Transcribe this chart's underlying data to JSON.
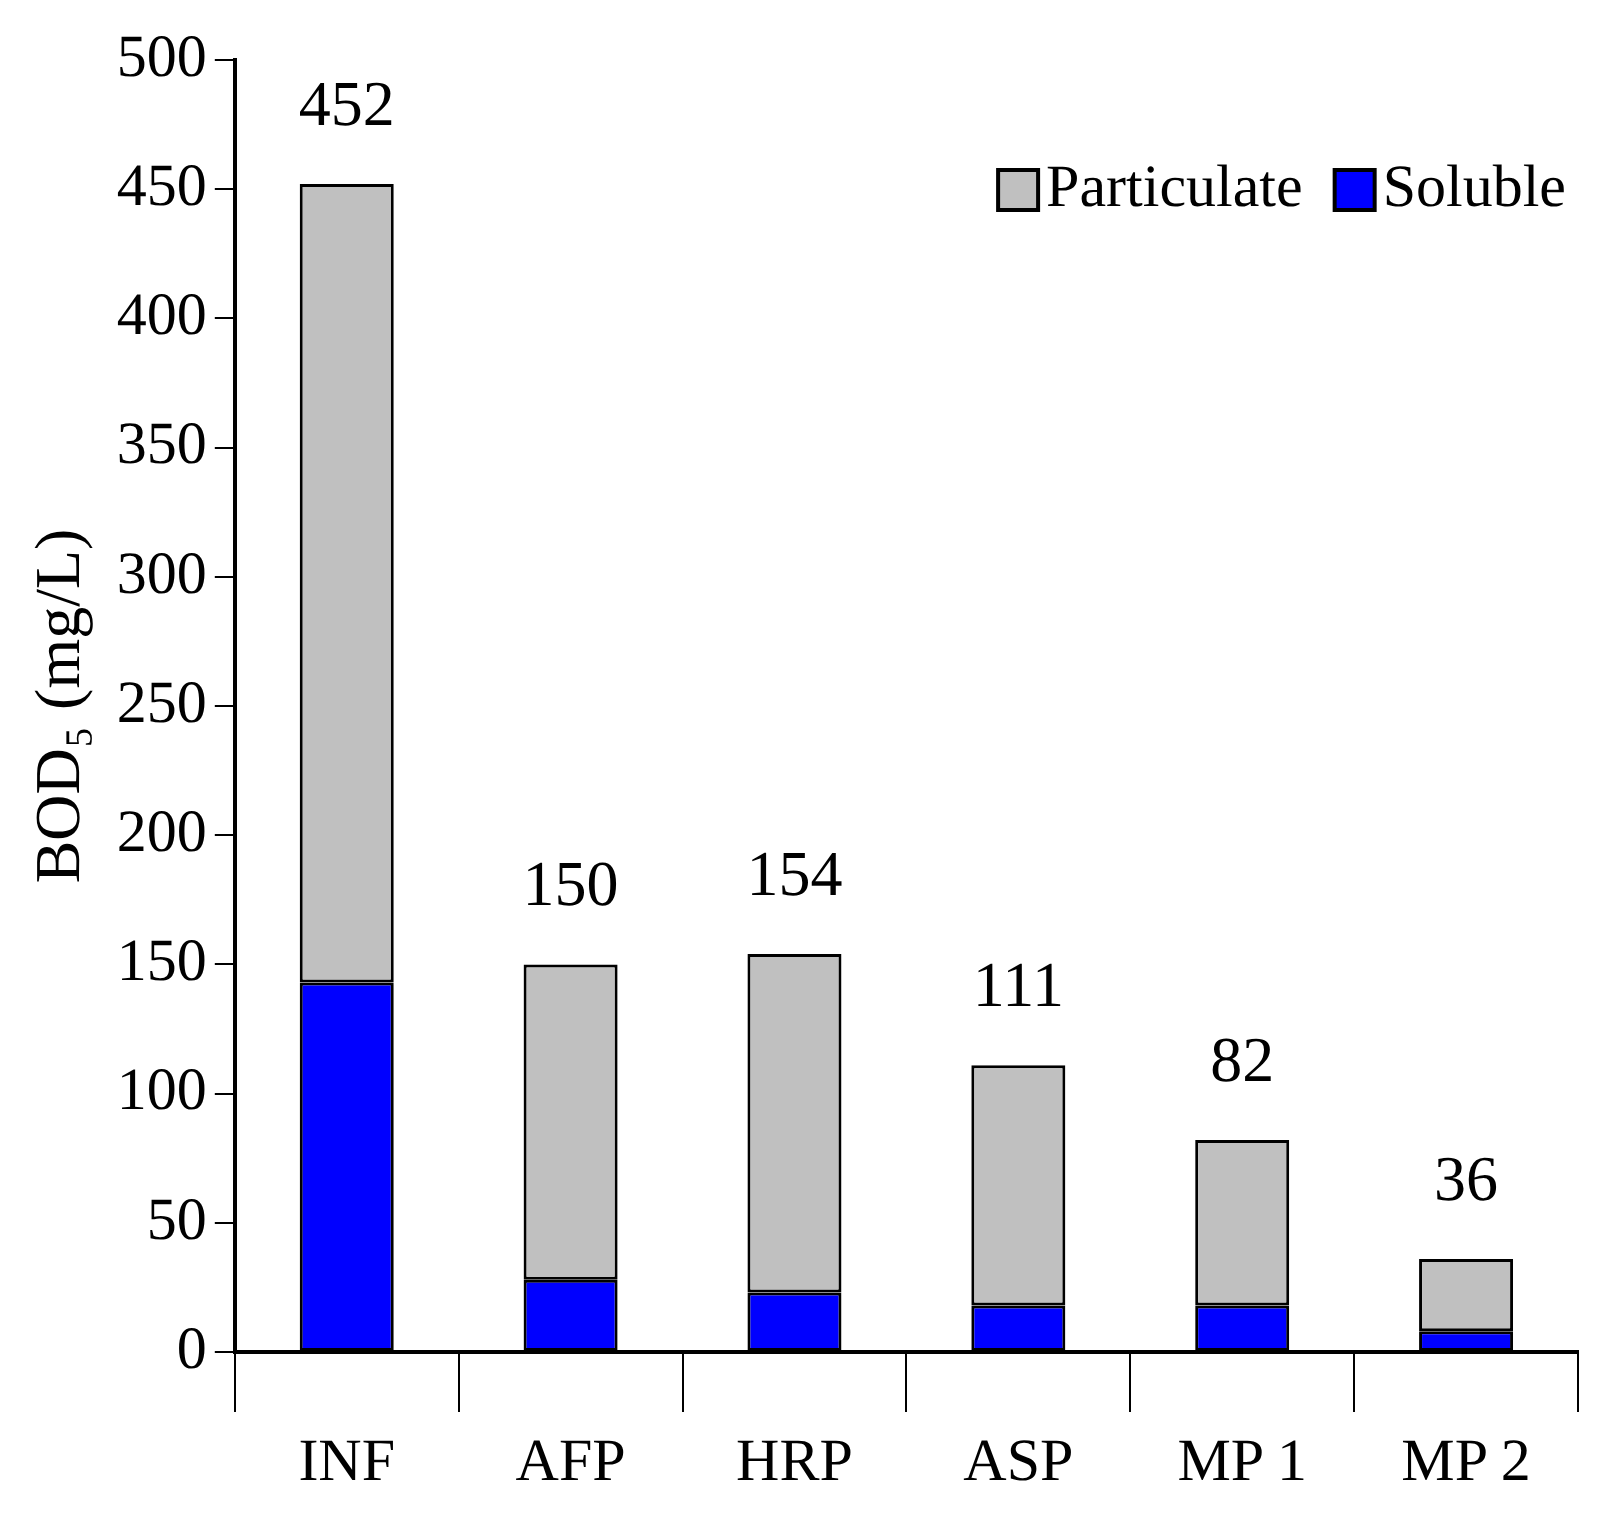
{
  "chart_data": {
    "type": "bar",
    "stacked": true,
    "ylabel": "BOD₅ (mg/L)",
    "categories": [
      "INF",
      "AFP",
      "HRP",
      "ASP",
      "MP 1",
      "MP 2"
    ],
    "series": [
      {
        "name": "Soluble",
        "color": "#0000ff",
        "values": [
          143,
          28,
          23,
          18,
          18,
          8
        ]
      },
      {
        "name": "Particulate",
        "color": "#c0c0c0",
        "values": [
          309,
          122,
          131,
          93,
          64,
          28
        ]
      }
    ],
    "totals": [
      "452",
      "150",
      "154",
      "111",
      "82",
      "36"
    ],
    "ylim": [
      0,
      500
    ],
    "yticks": [
      0,
      50,
      100,
      150,
      200,
      250,
      300,
      350,
      400,
      450,
      500
    ],
    "grid": false,
    "legend": "top right"
  }
}
